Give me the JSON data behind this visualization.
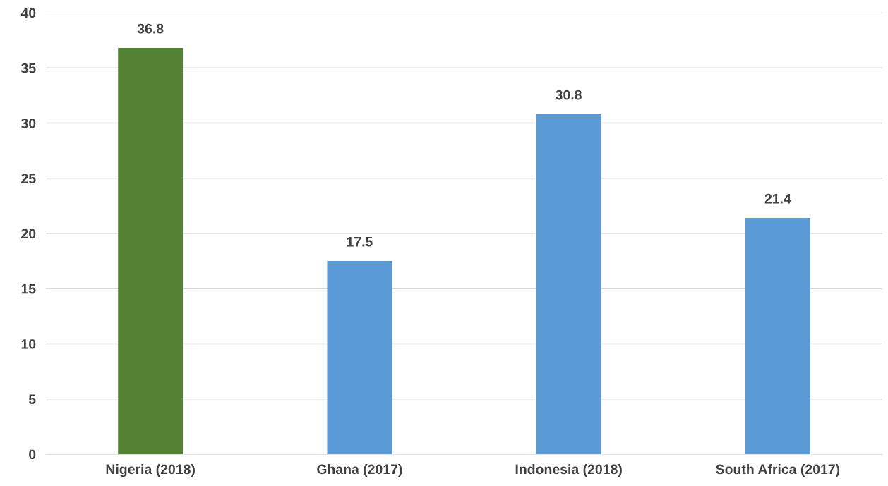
{
  "chart_data": {
    "type": "bar",
    "categories": [
      "Nigeria (2018)",
      "Ghana (2017)",
      "Indonesia (2018)",
      "South Africa (2017)"
    ],
    "values": [
      36.8,
      17.5,
      30.8,
      21.4
    ],
    "colors": [
      "#548235",
      "#5b9bd5",
      "#5b9bd5",
      "#5b9bd5"
    ],
    "ylim": [
      0,
      40
    ],
    "yticks": [
      0,
      5,
      10,
      15,
      20,
      25,
      30,
      35,
      40
    ],
    "grid": "y",
    "data_labels": true
  }
}
